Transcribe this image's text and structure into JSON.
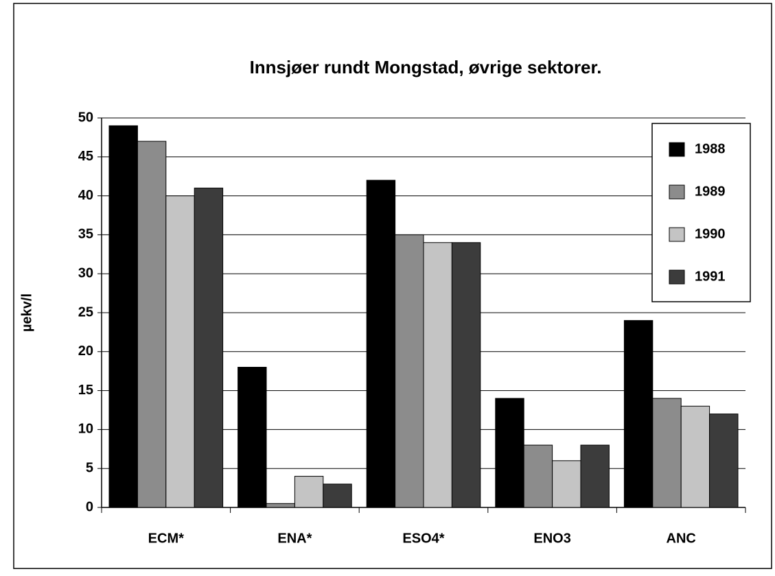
{
  "chart_data": {
    "type": "bar",
    "title": "Innsjøer rundt Mongstad, øvrige sektorer.",
    "y_label": "µekv/l",
    "categories": [
      "ECM*",
      "ENA*",
      "ESO4*",
      "ENO3",
      "ANC"
    ],
    "series": [
      {
        "name": "1988",
        "color": "#000000",
        "values": [
          49,
          18,
          42,
          14,
          24
        ]
      },
      {
        "name": "1989",
        "color": "#8c8c8c",
        "values": [
          47,
          0.5,
          35,
          8,
          14
        ]
      },
      {
        "name": "1990",
        "color": "#c4c4c4",
        "values": [
          40,
          4,
          34,
          6,
          13
        ]
      },
      {
        "name": "1991",
        "color": "#3c3c3c",
        "values": [
          41,
          3,
          34,
          8,
          12
        ]
      }
    ],
    "ylim": [
      0,
      50
    ],
    "yticks": [
      0,
      5,
      10,
      15,
      20,
      25,
      30,
      35,
      40,
      45,
      50
    ],
    "grid": true,
    "legend": "upper right"
  }
}
